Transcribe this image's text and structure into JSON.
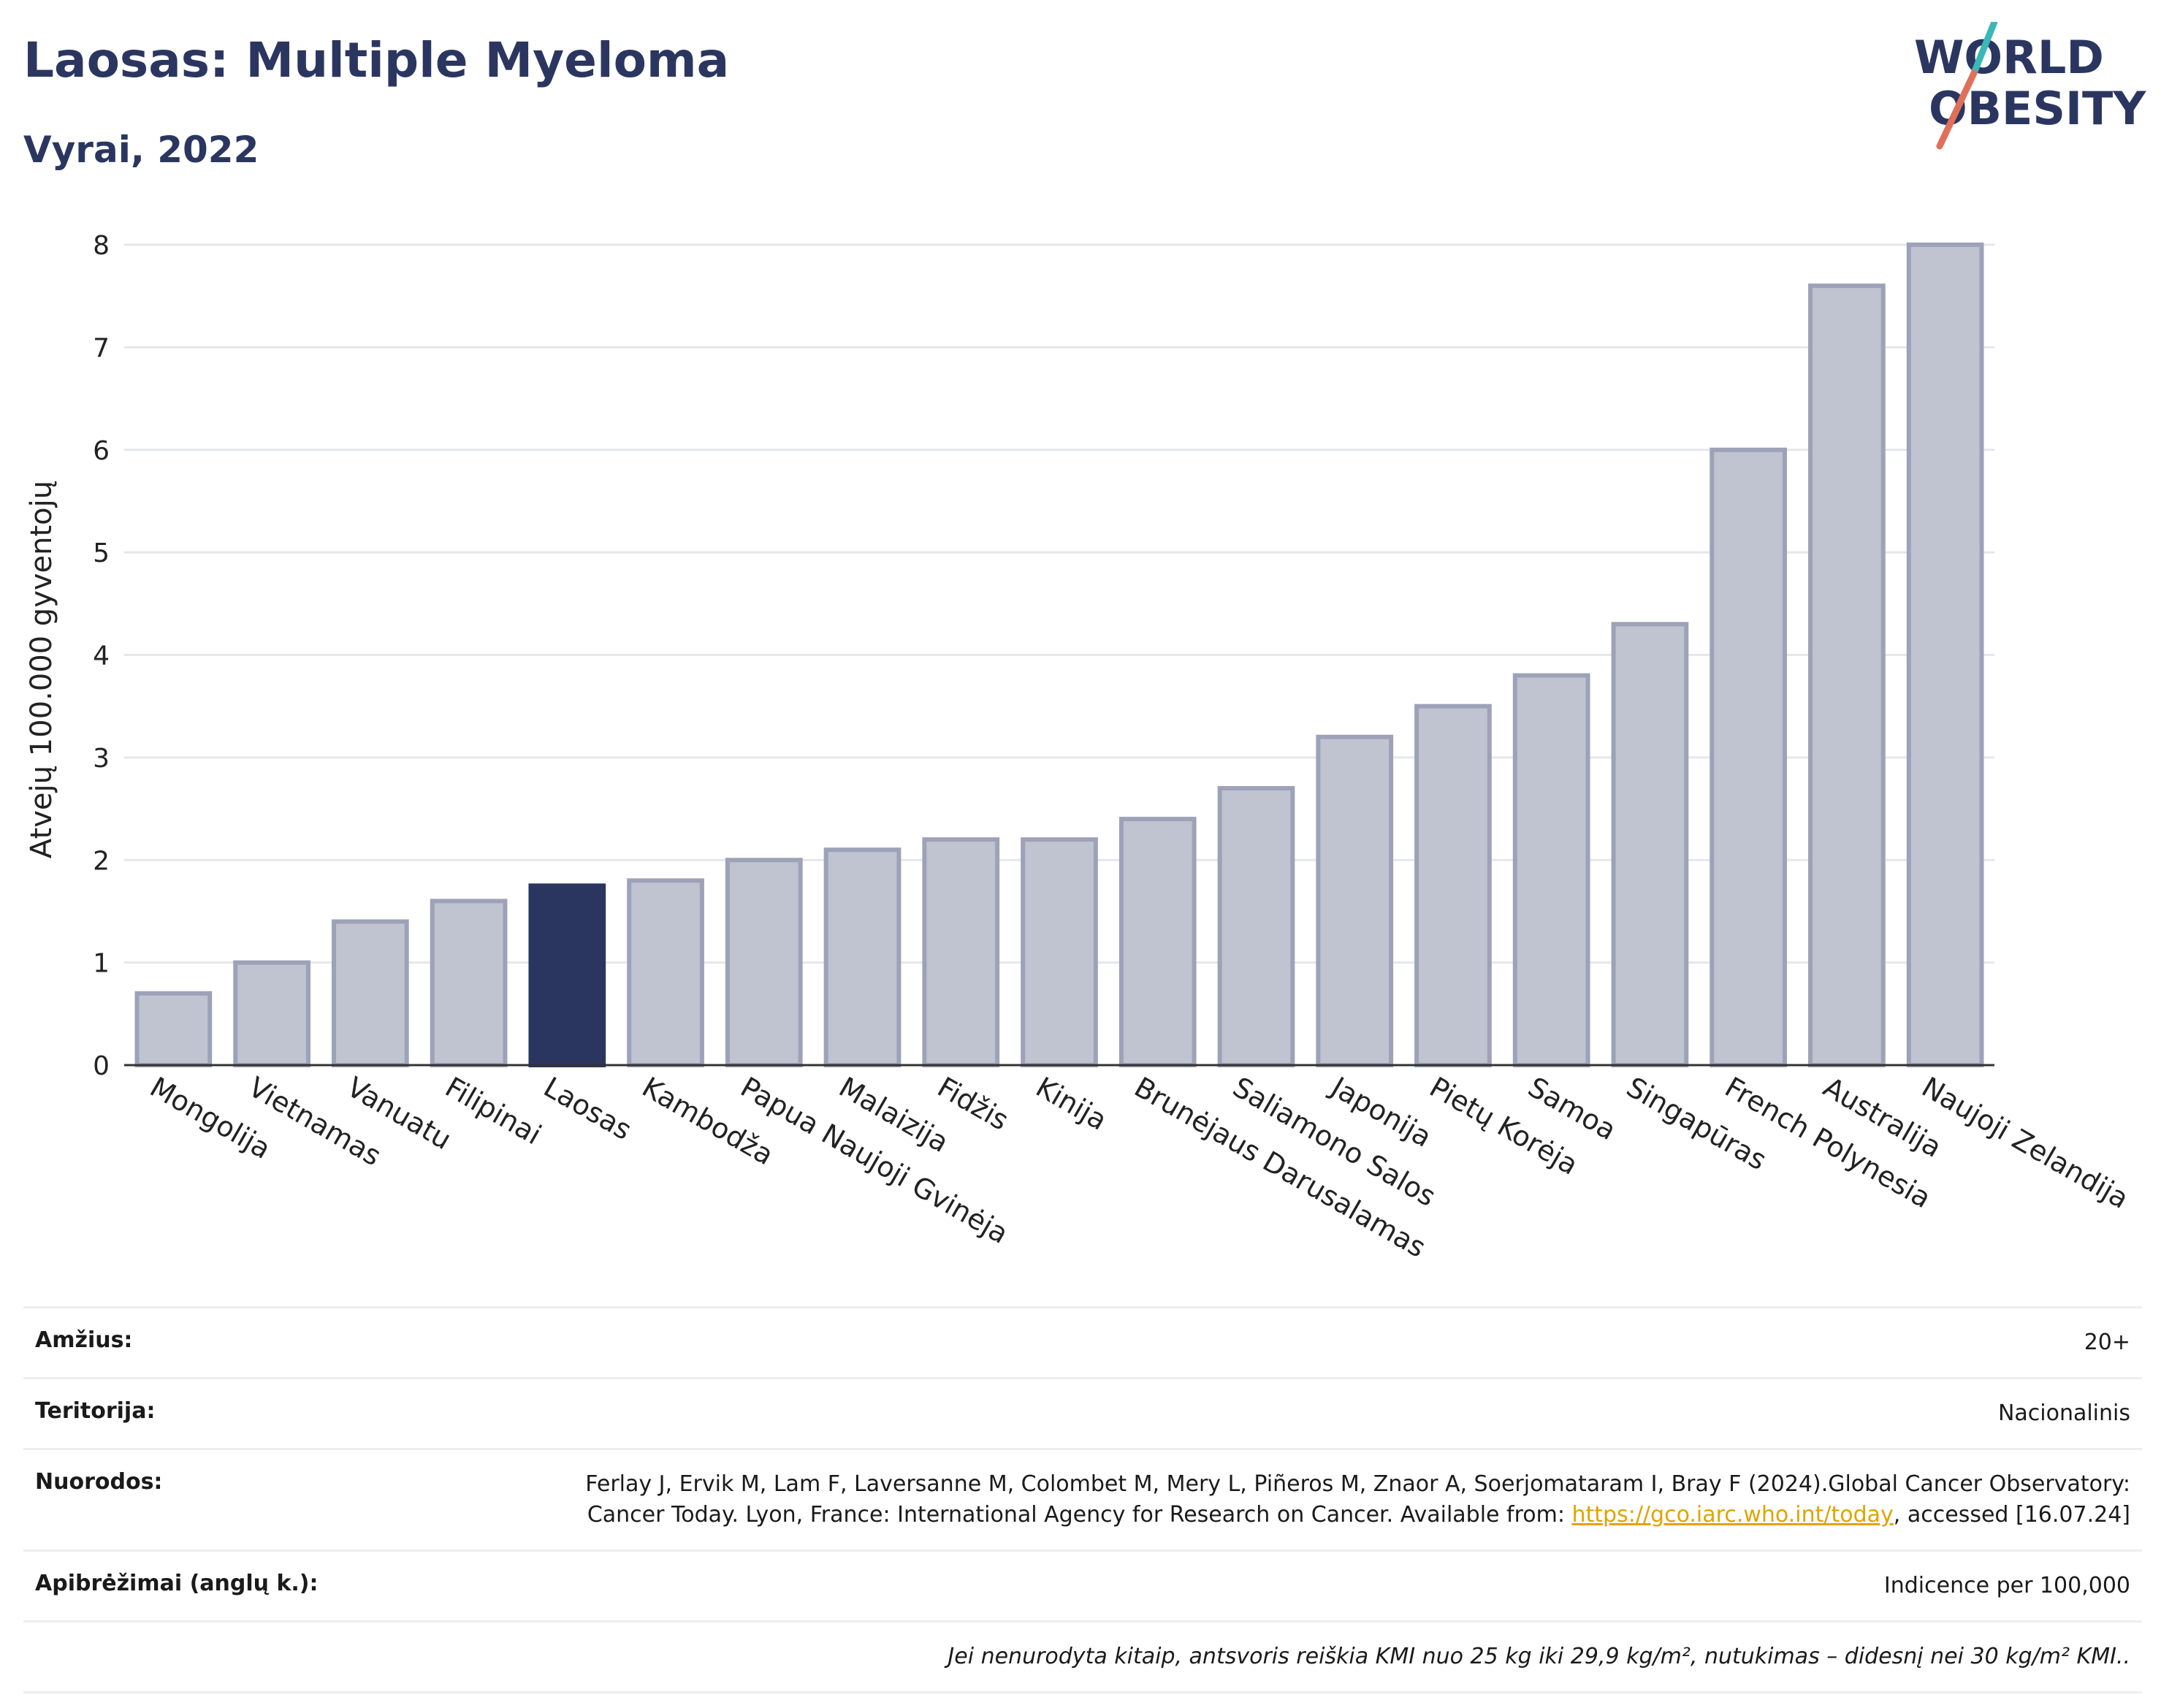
{
  "header": {
    "title": "Laosas: Multiple Myeloma",
    "subtitle": "Vyrai, 2022"
  },
  "logo": {
    "line1": "WORLD",
    "line2": "OBESITY"
  },
  "chart_data": {
    "type": "bar",
    "ylabel": "Atvejų 100.000 gyventojų",
    "ylim": [
      0,
      8
    ],
    "yticks": [
      "0",
      "1",
      "2",
      "3",
      "4",
      "5",
      "6",
      "7",
      "8"
    ],
    "categories": [
      "Mongolija",
      "Vietnamas",
      "Vanuatu",
      "Filipinai",
      "Laosas",
      "Kambodža",
      "Papua Naujoji Gvinėja",
      "Malaizija",
      "Fidžis",
      "Kinija",
      "Brunėjaus Darusalamas",
      "Saliamono Salos",
      "Japonija",
      "Pietų Korėja",
      "Samoa",
      "Singapūras",
      "French Polynesia",
      "Australija",
      "Naujoji Zelandija"
    ],
    "values": [
      0.7,
      1.0,
      1.4,
      1.6,
      1.75,
      1.8,
      2.0,
      2.1,
      2.2,
      2.2,
      2.4,
      2.7,
      3.2,
      3.5,
      3.8,
      4.3,
      6.0,
      7.6,
      8.0
    ],
    "highlight": "Laosas",
    "colors": {
      "bar": "#c0c3d0",
      "bar_border": "#9da2b8",
      "highlight": "#2b3660",
      "grid": "#e6e7ec",
      "axis": "#333333"
    },
    "grid": true
  },
  "info": {
    "age_label": "Amžius:",
    "age_value": "20+",
    "territory_label": "Teritorija:",
    "territory_value": "Nacionalinis",
    "refs_label": "Nuorodos:",
    "refs_text_1": "Ferlay J, Ervik M, Lam F, Laversanne M, Colombet M, Mery L, Piñeros M, Znaor A, Soerjomataram I, Bray F (2024).Global Cancer Observatory: Cancer Today. Lyon, France: International Agency for Research on Cancer. Available from: ",
    "refs_link": "https://gco.iarc.who.int/today",
    "refs_text_2": ", accessed [16.07.24]",
    "definitions_label": "Apibrėžimai (anglų k.):",
    "definitions_value": "Indicence per 100,000",
    "note": "Jei nenurodyta kitaip, antsvoris reiškia KMI nuo 25 kg iki 29,9 kg/m², nutukimas – didesnį nei 30 kg/m² KMI.."
  }
}
